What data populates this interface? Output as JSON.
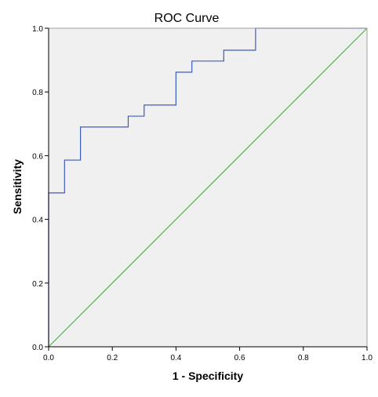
{
  "chart_data": {
    "type": "line",
    "title": "ROC Curve",
    "xlabel": "1 - Specificity",
    "ylabel": "Sensitivity",
    "xlim": [
      0,
      1
    ],
    "ylim": [
      0,
      1
    ],
    "x_ticks": [
      0.0,
      0.2,
      0.4,
      0.6,
      0.8,
      1.0
    ],
    "y_ticks": [
      0.0,
      0.2,
      0.4,
      0.6,
      0.8,
      1.0
    ],
    "x_tick_labels": [
      "0.0",
      "0.2",
      "0.4",
      "0.6",
      "0.8",
      "1.0"
    ],
    "y_tick_labels": [
      "0.0",
      "0.2",
      "0.4",
      "0.6",
      "0.8",
      "1.0"
    ],
    "grid": false,
    "legend": "none",
    "series": [
      {
        "step": true,
        "color": "#3b5bbf",
        "x": [
          0.0,
          0.0,
          0.05,
          0.05,
          0.1,
          0.1,
          0.25,
          0.25,
          0.3,
          0.3,
          0.4,
          0.4,
          0.45,
          0.45,
          0.55,
          0.55,
          0.65,
          0.65,
          1.0
        ],
        "y": [
          0.0,
          0.483,
          0.483,
          0.586,
          0.586,
          0.69,
          0.69,
          0.724,
          0.724,
          0.759,
          0.759,
          0.862,
          0.862,
          0.897,
          0.897,
          0.931,
          0.931,
          1.0,
          1.0
        ]
      },
      {
        "color": "#3cbf3c",
        "x": [
          0.0,
          1.0
        ],
        "y": [
          0.0,
          1.0
        ]
      }
    ],
    "colors": {
      "plot_background": "#f0f0f0",
      "axis": "#000000",
      "frame": "#a0a0a0"
    }
  }
}
